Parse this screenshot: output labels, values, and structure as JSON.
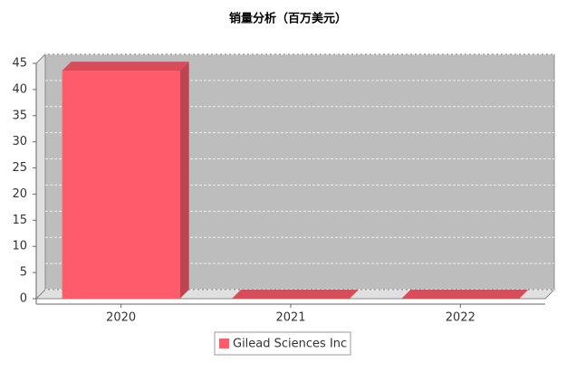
{
  "chart_data": {
    "type": "bar3d",
    "title": "销量分析（百万美元）",
    "categories": [
      "2020",
      "2021",
      "2022"
    ],
    "series": [
      {
        "name": "Gilead Sciences Inc",
        "color": "#ff5b6b",
        "values": [
          43.6,
          0,
          0
        ]
      }
    ],
    "ylim": [
      0,
      45
    ],
    "yticks": [
      0,
      5,
      10,
      15,
      20,
      25,
      30,
      35,
      40,
      45
    ],
    "grid": true
  }
}
